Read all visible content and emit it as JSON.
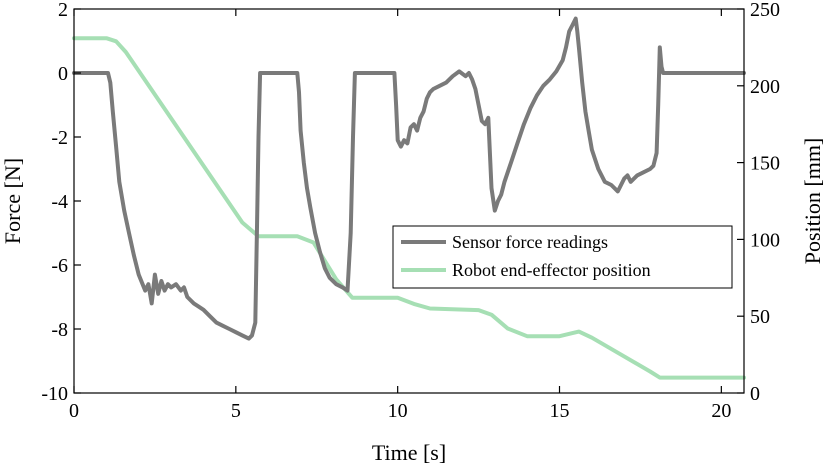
{
  "chart_data": {
    "type": "line",
    "xlabel": "Time [s]",
    "ylabel_left": "Force [N]",
    "ylabel_right": "Position [mm]",
    "xlim": [
      0,
      20.7
    ],
    "ylim_left": [
      -10,
      2
    ],
    "ylim_right": [
      0,
      250
    ],
    "x_ticks": [
      0,
      5,
      10,
      15,
      20
    ],
    "x_tick_labels": [
      "0",
      "5",
      "10",
      "15",
      "20"
    ],
    "y_left_ticks": [
      -10,
      -8,
      -6,
      -4,
      -2,
      0,
      2
    ],
    "y_left_tick_labels": [
      "-10",
      "-8",
      "-6",
      "-4",
      "-2",
      "0",
      "2"
    ],
    "y_right_ticks": [
      0,
      50,
      100,
      150,
      200,
      250
    ],
    "y_right_tick_labels": [
      "0",
      "50",
      "100",
      "150",
      "200",
      "250"
    ],
    "grid": false,
    "legend_position": "center-right",
    "series": [
      {
        "name": "Sensor force readings",
        "axis": "left",
        "color": "#7a7a7a",
        "points": [
          [
            0,
            0
          ],
          [
            1.05,
            0
          ],
          [
            1.12,
            -0.3
          ],
          [
            1.2,
            -1.2
          ],
          [
            1.3,
            -2.3
          ],
          [
            1.4,
            -3.4
          ],
          [
            1.55,
            -4.3
          ],
          [
            1.7,
            -5.0
          ],
          [
            1.85,
            -5.7
          ],
          [
            2.0,
            -6.3
          ],
          [
            2.2,
            -6.8
          ],
          [
            2.3,
            -6.6
          ],
          [
            2.4,
            -7.2
          ],
          [
            2.5,
            -6.3
          ],
          [
            2.6,
            -6.9
          ],
          [
            2.7,
            -6.5
          ],
          [
            2.8,
            -6.8
          ],
          [
            2.9,
            -6.6
          ],
          [
            3.0,
            -6.7
          ],
          [
            3.15,
            -6.6
          ],
          [
            3.3,
            -6.8
          ],
          [
            3.4,
            -6.7
          ],
          [
            3.5,
            -7.0
          ],
          [
            3.7,
            -7.2
          ],
          [
            3.85,
            -7.3
          ],
          [
            4.0,
            -7.4
          ],
          [
            4.2,
            -7.6
          ],
          [
            4.4,
            -7.8
          ],
          [
            4.6,
            -7.9
          ],
          [
            4.8,
            -8.0
          ],
          [
            5.0,
            -8.1
          ],
          [
            5.2,
            -8.2
          ],
          [
            5.4,
            -8.3
          ],
          [
            5.5,
            -8.2
          ],
          [
            5.6,
            -7.8
          ],
          [
            5.65,
            -5.0
          ],
          [
            5.7,
            -2.0
          ],
          [
            5.75,
            0
          ],
          [
            6.9,
            0
          ],
          [
            6.95,
            -0.6
          ],
          [
            7.0,
            -1.8
          ],
          [
            7.1,
            -2.8
          ],
          [
            7.2,
            -3.6
          ],
          [
            7.3,
            -4.2
          ],
          [
            7.45,
            -5.0
          ],
          [
            7.6,
            -5.6
          ],
          [
            7.75,
            -6.1
          ],
          [
            7.9,
            -6.4
          ],
          [
            8.1,
            -6.6
          ],
          [
            8.3,
            -6.7
          ],
          [
            8.45,
            -6.8
          ],
          [
            8.55,
            -5.0
          ],
          [
            8.62,
            -2.0
          ],
          [
            8.68,
            0
          ],
          [
            9.9,
            0
          ],
          [
            9.95,
            -1.0
          ],
          [
            10.0,
            -2.1
          ],
          [
            10.1,
            -2.3
          ],
          [
            10.2,
            -2.1
          ],
          [
            10.3,
            -2.2
          ],
          [
            10.4,
            -1.7
          ],
          [
            10.5,
            -1.6
          ],
          [
            10.6,
            -1.8
          ],
          [
            10.7,
            -1.4
          ],
          [
            10.8,
            -1.2
          ],
          [
            10.9,
            -0.8
          ],
          [
            11.0,
            -0.6
          ],
          [
            11.1,
            -0.5
          ],
          [
            11.3,
            -0.4
          ],
          [
            11.5,
            -0.3
          ],
          [
            11.7,
            -0.1
          ],
          [
            11.9,
            0.05
          ],
          [
            12.1,
            -0.1
          ],
          [
            12.2,
            0.0
          ],
          [
            12.3,
            -0.2
          ],
          [
            12.4,
            -0.5
          ],
          [
            12.5,
            -1.0
          ],
          [
            12.6,
            -1.5
          ],
          [
            12.7,
            -1.6
          ],
          [
            12.8,
            -1.4
          ],
          [
            12.85,
            -2.5
          ],
          [
            12.9,
            -3.6
          ],
          [
            13.0,
            -4.3
          ],
          [
            13.1,
            -4.0
          ],
          [
            13.2,
            -3.8
          ],
          [
            13.3,
            -3.4
          ],
          [
            13.5,
            -2.8
          ],
          [
            13.7,
            -2.2
          ],
          [
            13.9,
            -1.6
          ],
          [
            14.1,
            -1.1
          ],
          [
            14.3,
            -0.7
          ],
          [
            14.5,
            -0.4
          ],
          [
            14.7,
            -0.2
          ],
          [
            14.9,
            0.05
          ],
          [
            15.1,
            0.4
          ],
          [
            15.2,
            0.8
          ],
          [
            15.3,
            1.3
          ],
          [
            15.4,
            1.5
          ],
          [
            15.5,
            1.7
          ],
          [
            15.55,
            1.3
          ],
          [
            15.6,
            0.8
          ],
          [
            15.7,
            -0.3
          ],
          [
            15.8,
            -1.2
          ],
          [
            15.9,
            -1.8
          ],
          [
            16.0,
            -2.4
          ],
          [
            16.2,
            -3.0
          ],
          [
            16.4,
            -3.4
          ],
          [
            16.6,
            -3.5
          ],
          [
            16.8,
            -3.7
          ],
          [
            16.9,
            -3.5
          ],
          [
            17.0,
            -3.3
          ],
          [
            17.1,
            -3.2
          ],
          [
            17.2,
            -3.4
          ],
          [
            17.4,
            -3.2
          ],
          [
            17.6,
            -3.1
          ],
          [
            17.8,
            -3.0
          ],
          [
            17.9,
            -2.9
          ],
          [
            18.0,
            -2.5
          ],
          [
            18.05,
            -1.0
          ],
          [
            18.1,
            0.8
          ],
          [
            18.15,
            0.2
          ],
          [
            18.2,
            0
          ],
          [
            20.7,
            0
          ]
        ]
      },
      {
        "name": "Robot end-effector position",
        "axis": "right",
        "color": "#a6dfb4",
        "points": [
          [
            0,
            231
          ],
          [
            1.0,
            231
          ],
          [
            1.3,
            229
          ],
          [
            1.6,
            222
          ],
          [
            5.2,
            111
          ],
          [
            5.7,
            102
          ],
          [
            6.9,
            102
          ],
          [
            7.4,
            98
          ],
          [
            8.1,
            74
          ],
          [
            8.6,
            62
          ],
          [
            10.0,
            62
          ],
          [
            10.5,
            58
          ],
          [
            11.0,
            55
          ],
          [
            12.5,
            54
          ],
          [
            12.9,
            51
          ],
          [
            13.4,
            42
          ],
          [
            14.0,
            37
          ],
          [
            15.0,
            37
          ],
          [
            15.4,
            39
          ],
          [
            15.6,
            40
          ],
          [
            16.0,
            36
          ],
          [
            17.8,
            14
          ],
          [
            18.1,
            10
          ],
          [
            20.7,
            10
          ]
        ]
      }
    ]
  }
}
